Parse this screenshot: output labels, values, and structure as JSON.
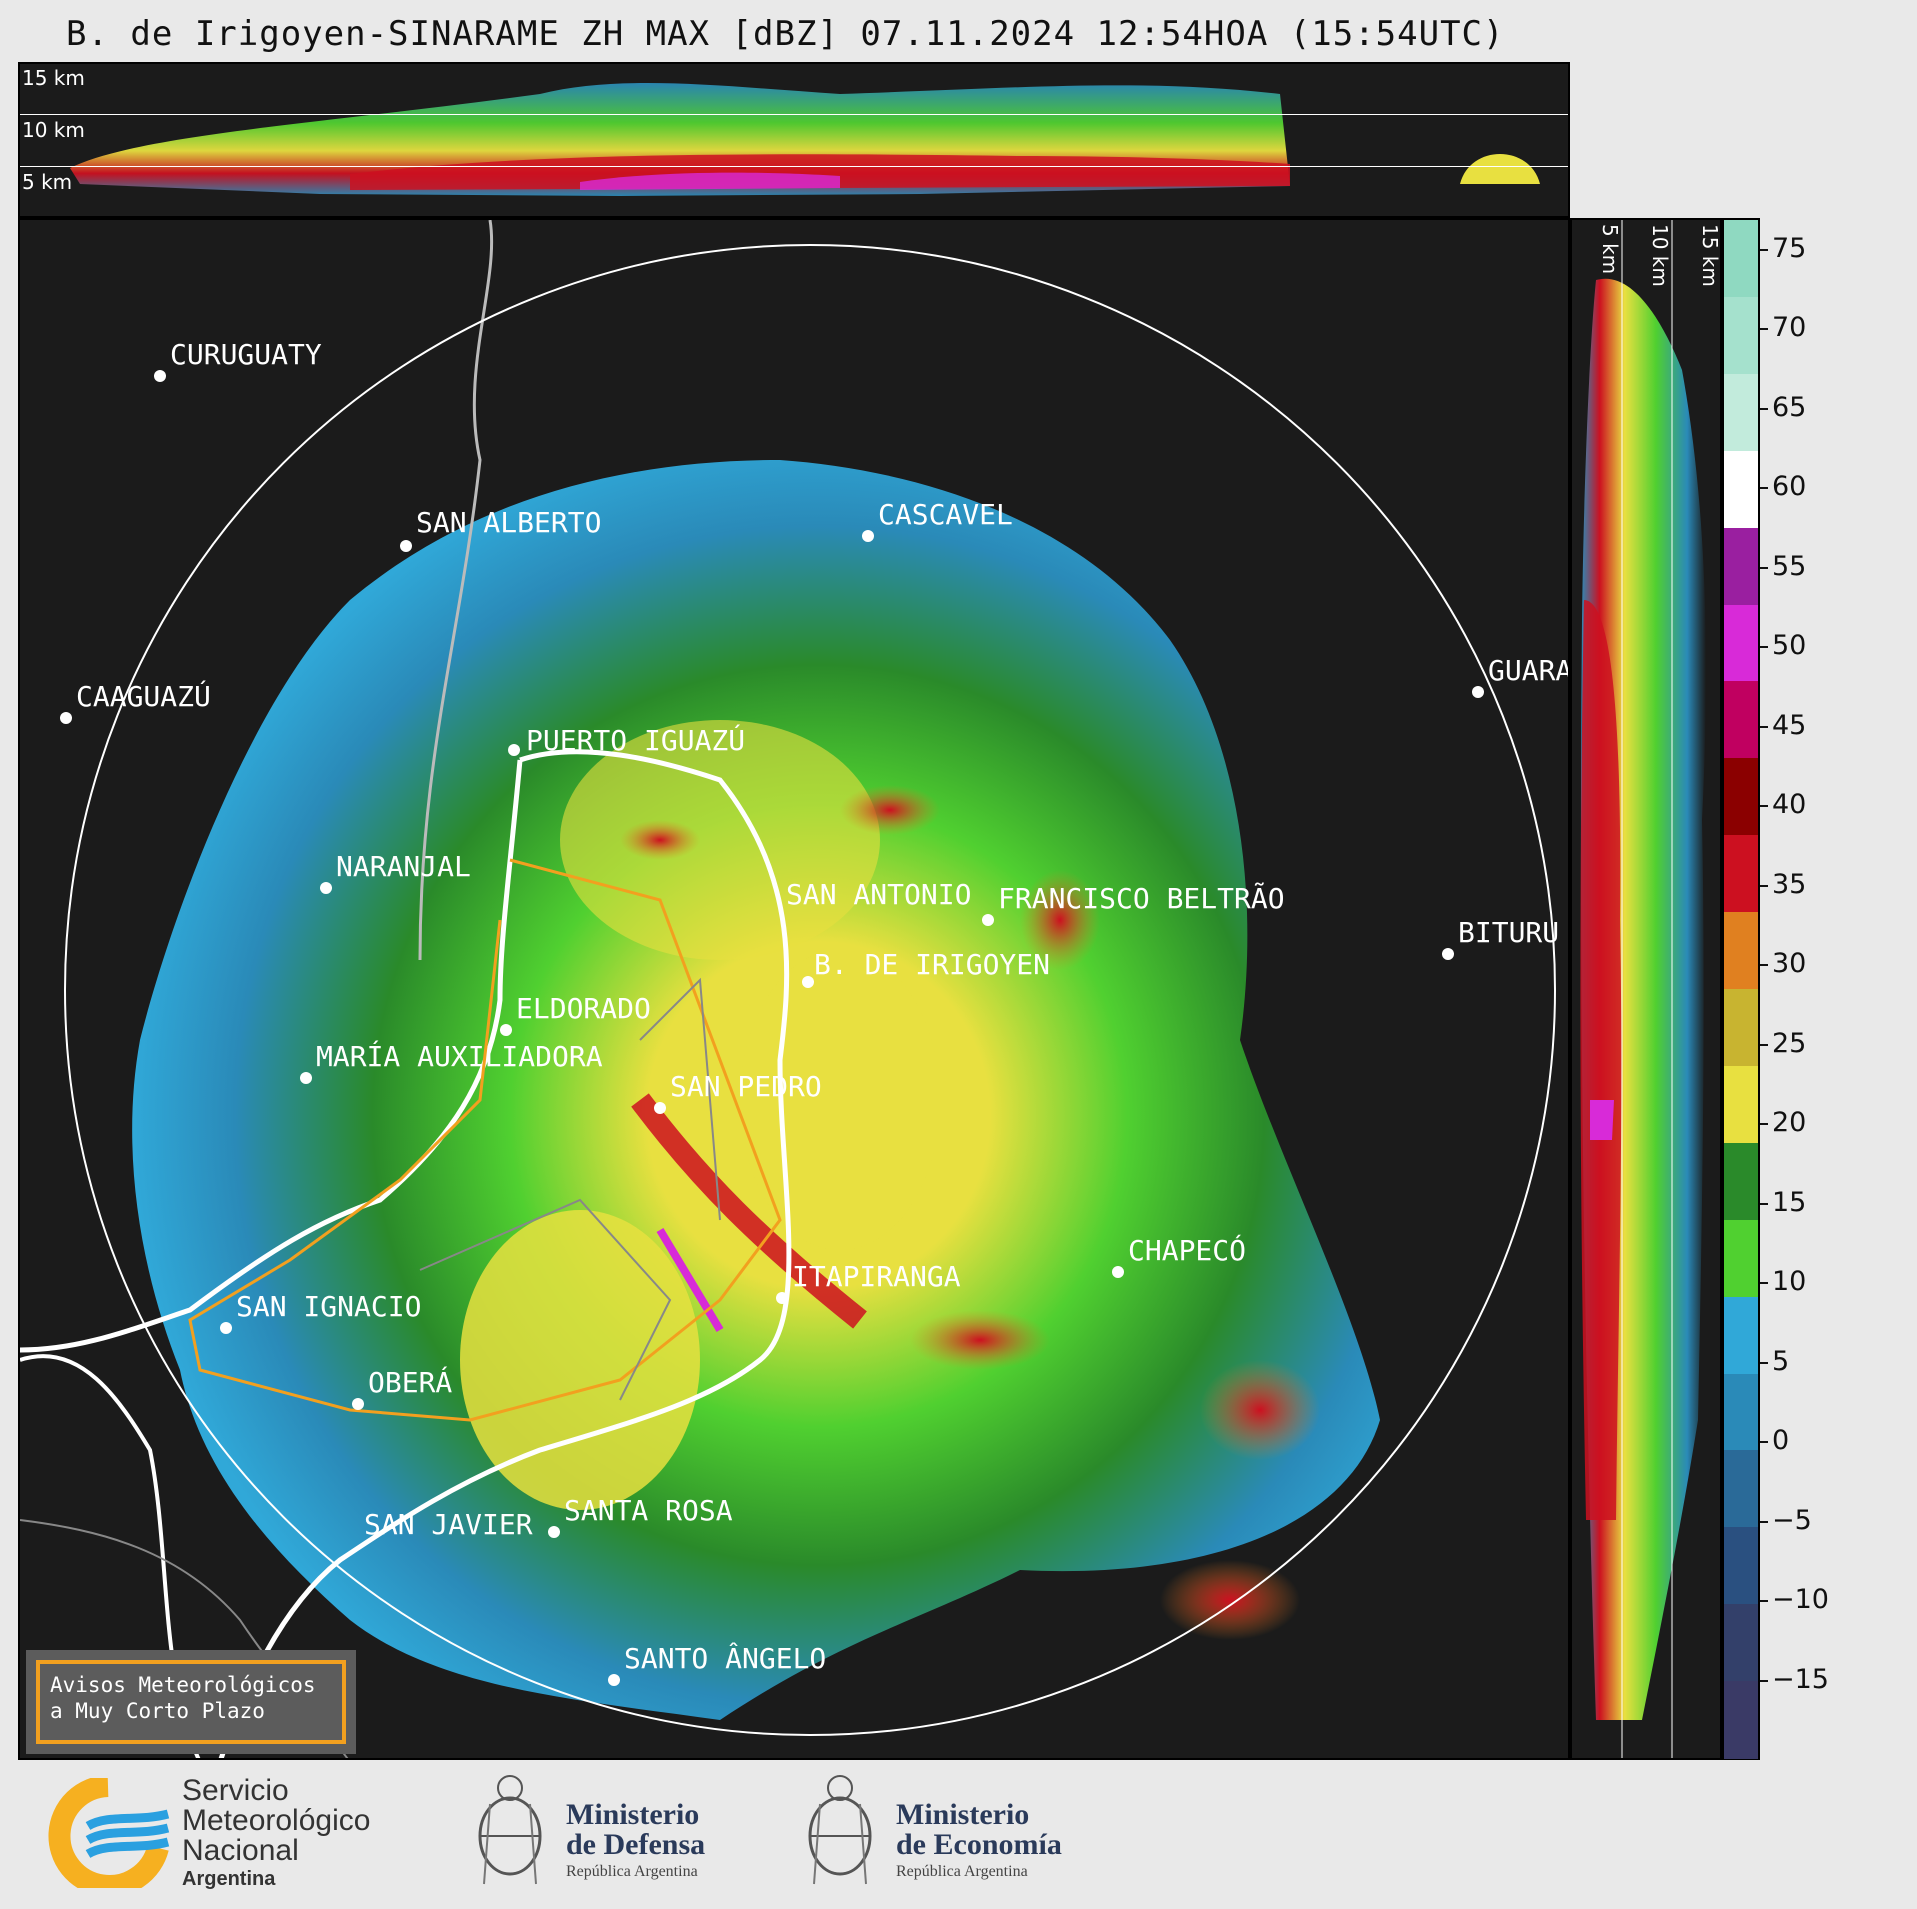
{
  "title": "B. de Irigoyen-SINARAME ZH MAX [dBZ] 07.11.2024 12:54HOA (15:54UTC)",
  "height_labels": [
    "15 km",
    "10 km",
    "5 km"
  ],
  "right_labels": [
    "5 km",
    "10 km",
    "15 km"
  ],
  "colorbar": {
    "ticks": [
      "75",
      "70",
      "65",
      "60",
      "55",
      "50",
      "45",
      "40",
      "35",
      "30",
      "25",
      "20",
      "15",
      "10",
      "5",
      "0",
      "−5",
      "−10",
      "−15"
    ],
    "colors": [
      "#8fd9c1",
      "#a5e1cd",
      "#c2ebdc",
      "#ffffff",
      "#9a1fa0",
      "#d82ad8",
      "#c00060",
      "#8b0000",
      "#cc1020",
      "#e08020",
      "#c8b430",
      "#e8e040",
      "#2a8a2a",
      "#50d030",
      "#30a8d8",
      "#2a8ab8",
      "#2a6a98",
      "#2a5080",
      "#33406a",
      "#3a3a66"
    ]
  },
  "cities": [
    {
      "name": "CURUGUATY"
    },
    {
      "name": "SAN ALBERTO"
    },
    {
      "name": "CASCAVEL"
    },
    {
      "name": "CAAGUAZÚ"
    },
    {
      "name": "GUARA"
    },
    {
      "name": "PUERTO IGUAZÚ"
    },
    {
      "name": "NARANJAL"
    },
    {
      "name": "SAN ANTONIO"
    },
    {
      "name": "FRANCISCO BELTRÃO"
    },
    {
      "name": "BITURU"
    },
    {
      "name": "B. DE IRIGOYEN"
    },
    {
      "name": "ELDORADO"
    },
    {
      "name": "MARÍA AUXILIADORA"
    },
    {
      "name": "SAN PEDRO"
    },
    {
      "name": "CHAPECÓ"
    },
    {
      "name": "ITAPIRANGA"
    },
    {
      "name": "SAN IGNACIO"
    },
    {
      "name": "OBERÁ"
    },
    {
      "name": "SAN JAVIER"
    },
    {
      "name": "SANTA ROSA"
    },
    {
      "name": "SANTO ÂNGELO"
    }
  ],
  "avisos": {
    "line1": "Avisos Meteorológicos",
    "line2": "a Muy Corto Plazo"
  },
  "logos": {
    "smn": {
      "line1": "Servicio",
      "line2": "Meteorológico",
      "line3": "Nacional",
      "line4": "Argentina"
    },
    "defensa": {
      "line1": "Ministerio",
      "line2": "de Defensa",
      "line3": "República Argentina"
    },
    "economia": {
      "line1": "Ministerio",
      "line2": "de Economía",
      "line3": "República Argentina"
    }
  }
}
